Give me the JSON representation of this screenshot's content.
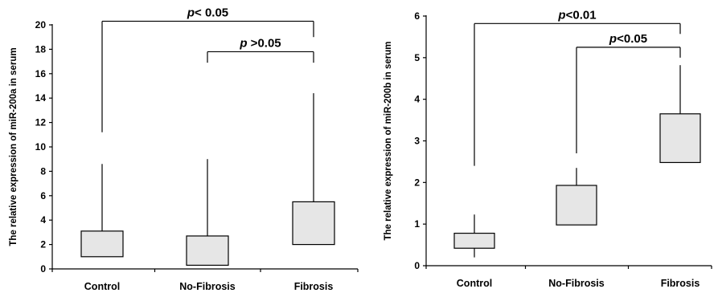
{
  "chart_data": [
    {
      "type": "box",
      "ylabel": "The relative expression of miR-200a in serum",
      "ylim": [
        0,
        20
      ],
      "yticks": [
        0,
        2,
        4,
        6,
        8,
        10,
        12,
        14,
        16,
        18,
        20
      ],
      "ytick_labels": [
        "0",
        "2",
        "4",
        "6",
        "8",
        "10",
        "12",
        "14",
        "16",
        "18",
        "20"
      ],
      "categories": [
        "Control",
        "No-Fibrosis",
        "Fibrosis"
      ],
      "boxes": [
        {
          "min": 1.0,
          "q1": 1.0,
          "q3": 3.1,
          "max": 8.6
        },
        {
          "min": 0.3,
          "q1": 0.3,
          "q3": 2.7,
          "max": 9.0
        },
        {
          "min": 2.0,
          "q1": 2.0,
          "q3": 5.5,
          "max": 14.4
        }
      ],
      "comparisons": [
        {
          "from": "Control",
          "to": "Fibrosis",
          "p_symbol": "p",
          "p_text": "< 0.05",
          "y": 20.3,
          "left_drop": 11.2,
          "right_drop": 19.0
        },
        {
          "from": "No-Fibrosis",
          "to": "Fibrosis",
          "p_symbol": "p",
          "p_text": " >0.05",
          "y": 17.8,
          "left_drop": 16.9,
          "right_drop": 16.9
        }
      ],
      "grid": false,
      "fill_color": "#e6e6e6",
      "line_color": "#000000"
    },
    {
      "type": "box",
      "ylabel": "The relative expression of miR-200b in serum",
      "ylim": [
        0,
        6
      ],
      "yticks": [
        0,
        1,
        2,
        3,
        4,
        5,
        6
      ],
      "ytick_labels": [
        "0",
        "1",
        "2",
        "3",
        "4",
        "5",
        "6"
      ],
      "categories": [
        "Control",
        "No-Fibrosis",
        "Fibrosis"
      ],
      "boxes": [
        {
          "min": 0.2,
          "q1": 0.42,
          "q3": 0.78,
          "max": 1.23
        },
        {
          "min": 0.98,
          "q1": 0.98,
          "q3": 1.93,
          "max": 2.35
        },
        {
          "min": 2.48,
          "q1": 2.48,
          "q3": 3.65,
          "max": 4.82
        }
      ],
      "comparisons": [
        {
          "from": "Control",
          "to": "Fibrosis",
          "p_symbol": "p",
          "p_text": "<0.01",
          "y": 5.82,
          "left_drop": 2.4,
          "right_drop": 5.57
        },
        {
          "from": "No-Fibrosis",
          "to": "Fibrosis",
          "p_symbol": "p",
          "p_text": "<0.05",
          "y": 5.25,
          "left_drop": 2.7,
          "right_drop": 5.0
        }
      ],
      "grid": false,
      "fill_color": "#e6e6e6",
      "line_color": "#000000"
    }
  ]
}
